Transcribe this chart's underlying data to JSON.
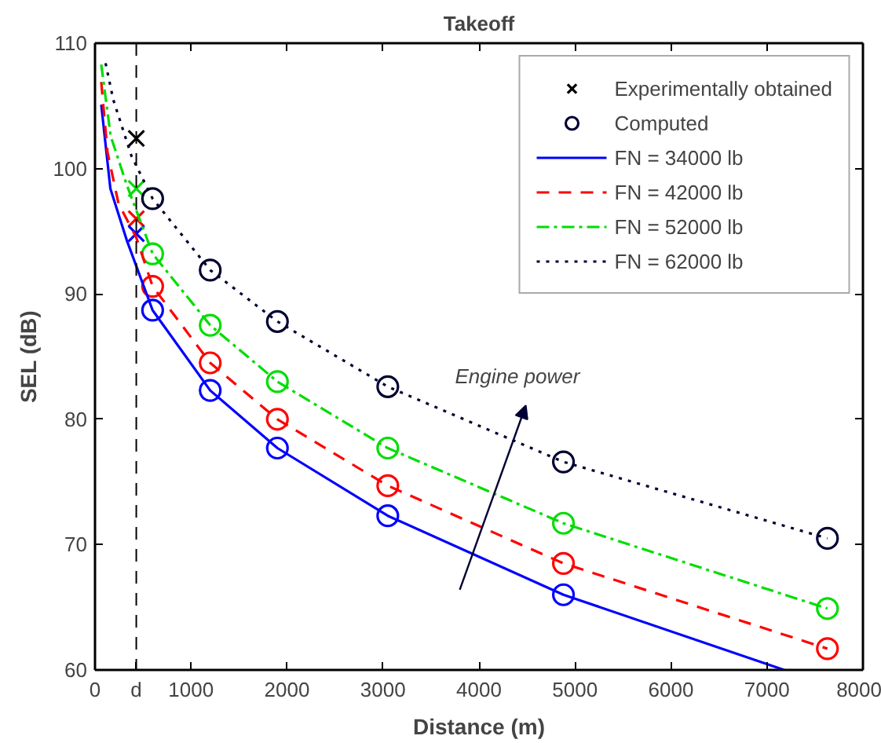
{
  "chart_data": {
    "type": "line",
    "title": "Takeoff",
    "xlabel": "Distance (m)",
    "ylabel": "SEL (dB)",
    "xlim": [
      0,
      8000
    ],
    "ylim": [
      60,
      110
    ],
    "xticks": [
      0,
      {
        "value": 430,
        "label": "d"
      },
      1000,
      2000,
      3000,
      4000,
      5000,
      6000,
      7000,
      8000
    ],
    "yticks": [
      60,
      70,
      80,
      90,
      100,
      110
    ],
    "grid": false,
    "legend": "top right",
    "ref_lines": [
      {
        "axis": "x",
        "value": 430,
        "color": "#000000",
        "line_style": "dashed"
      }
    ],
    "annotations": [
      "Engine power"
    ],
    "series": [
      {
        "name": "Experimentally obtained",
        "type": "scatter",
        "marker": "cross",
        "x": [
          430,
          430,
          430,
          430
        ],
        "values": [
          102.4,
          98.4,
          96.0,
          94.8
        ],
        "colors": [
          "#000000",
          "#00dd00",
          "#ff0000",
          "#0000ff"
        ]
      },
      {
        "name": "Computed",
        "type": "scatter",
        "marker": "circle",
        "x": [
          600,
          1200,
          1900,
          3050,
          4880,
          7630,
          600,
          1200,
          1900,
          3050,
          4880,
          7630,
          600,
          1200,
          1900,
          3050,
          4880,
          7630,
          600,
          1200,
          1900,
          3050,
          4880
        ],
        "values": [
          97.6,
          91.9,
          87.8,
          82.6,
          76.6,
          70.5,
          93.2,
          87.5,
          83.0,
          77.7,
          71.7,
          64.9,
          90.6,
          84.5,
          80.0,
          74.7,
          68.5,
          61.7,
          88.7,
          82.3,
          77.7,
          72.3,
          66.0
        ],
        "colors": [
          "#000033",
          "#000033",
          "#000033",
          "#000033",
          "#000033",
          "#000033",
          "#00dd00",
          "#00dd00",
          "#00dd00",
          "#00dd00",
          "#00dd00",
          "#00dd00",
          "#ff0000",
          "#ff0000",
          "#ff0000",
          "#ff0000",
          "#ff0000",
          "#ff0000",
          "#0000ff",
          "#0000ff",
          "#0000ff",
          "#0000ff",
          "#0000ff"
        ]
      },
      {
        "name": "FN = 34000 lb",
        "color": "#0000ff",
        "line_style": "solid",
        "x": [
          65,
          160,
          330,
          600,
          1200,
          1900,
          3050,
          4880,
          7180
        ],
        "values": [
          105.1,
          98.4,
          94.3,
          88.7,
          82.3,
          77.7,
          72.3,
          66.0,
          60
        ]
      },
      {
        "name": "FN = 42000 lb",
        "color": "#ff0000",
        "line_style": "dashed",
        "x": [
          65,
          130,
          245,
          430,
          600,
          1200,
          1900,
          3050,
          4880,
          7630
        ],
        "values": [
          106.9,
          101.3,
          97.2,
          94.5,
          90.6,
          84.5,
          80.0,
          74.7,
          68.5,
          61.7
        ]
      },
      {
        "name": "FN = 52000 lb",
        "color": "#00dd00",
        "line_style": "dashdot",
        "x": [
          65,
          163,
          326,
          600,
          1200,
          1900,
          3050,
          4880,
          7630
        ],
        "values": [
          108.3,
          102.6,
          98.8,
          93.2,
          87.5,
          83.0,
          77.7,
          71.7,
          64.9
        ]
      },
      {
        "name": "FN = 62000 lb",
        "color": "#000033",
        "line_style": "dotted",
        "x": [
          110,
          190,
          380,
          600,
          1200,
          1900,
          3050,
          4880,
          7630
        ],
        "values": [
          108.4,
          105.5,
          101,
          97.6,
          91.9,
          87.8,
          82.6,
          76.6,
          70.5
        ]
      }
    ]
  }
}
